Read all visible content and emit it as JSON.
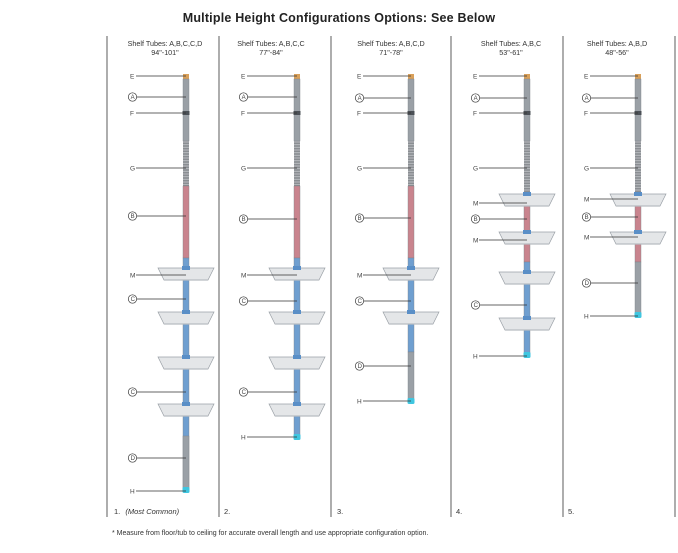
{
  "title": "Multiple Height Configurations Options: See Below",
  "footnote": "* Measure from floor/tub to ceiling for accurate overall length and use appropriate configuration option.",
  "colors": {
    "pole_gray": "#9aa0a6",
    "pole_red": "#c9848e",
    "pole_blue": "#6f9fd0",
    "cap_orange": "#d9a05a",
    "foot_cyan": "#3fc6e0",
    "shelf": "#e4e6e8"
  },
  "configurations": [
    {
      "tubes": "Shelf Tubes: A,B,C,C,D",
      "range": "94\"-101\"",
      "number": "1.",
      "note": "(Most Common)"
    },
    {
      "tubes": "Shelf Tubes: A,B,C,C",
      "range": "77\"-84\"",
      "number": "2.",
      "note": ""
    },
    {
      "tubes": "Shelf Tubes: A,B,C,D",
      "range": "71\"-78\"",
      "number": "3.",
      "note": ""
    },
    {
      "tubes": "Shelf Tubes: A,B,C",
      "range": "53\"-61\"",
      "number": "4.",
      "note": ""
    },
    {
      "tubes": "Shelf Tubes: A,B,D",
      "range": "48\"-56\"",
      "number": "5.",
      "note": ""
    }
  ],
  "part_labels": {
    "E": "E",
    "A": "A",
    "F": "F",
    "G": "G",
    "B": "B",
    "M": "M",
    "C": "C",
    "D": "D",
    "H": "H"
  }
}
